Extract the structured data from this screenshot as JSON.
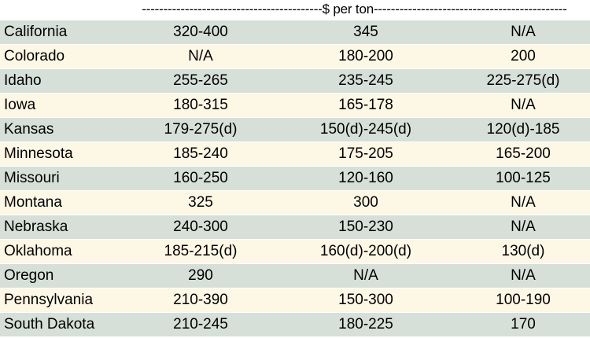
{
  "header": {
    "unit_label": "------------------------------------------$ per ton---------------------------------------------"
  },
  "rows": [
    {
      "state": "California",
      "c1": "320-400",
      "c2": "345",
      "c3": "N/A"
    },
    {
      "state": "Colorado",
      "c1": "N/A",
      "c2": "180-200",
      "c3": "200"
    },
    {
      "state": "Idaho",
      "c1": "255-265",
      "c2": "235-245",
      "c3": "225-275(d)"
    },
    {
      "state": "Iowa",
      "c1": "180-315",
      "c2": "165-178",
      "c3": "N/A"
    },
    {
      "state": "Kansas",
      "c1": "179-275(d)",
      "c2": "150(d)-245(d)",
      "c3": "120(d)-185"
    },
    {
      "state": "Minnesota",
      "c1": "185-240",
      "c2": "175-205",
      "c3": "165-200"
    },
    {
      "state": "Missouri",
      "c1": "160-250",
      "c2": "120-160",
      "c3": "100-125"
    },
    {
      "state": "Montana",
      "c1": "325",
      "c2": "300",
      "c3": "N/A"
    },
    {
      "state": "Nebraska",
      "c1": "240-300",
      "c2": "150-230",
      "c3": "N/A"
    },
    {
      "state": "Oklahoma",
      "c1": "185-215(d)",
      "c2": "160(d)-200(d)",
      "c3": "130(d)"
    },
    {
      "state": "Oregon",
      "c1": "290",
      "c2": "N/A",
      "c3": "N/A"
    },
    {
      "state": "Pennsylvania",
      "c1": "210-390",
      "c2": "150-300",
      "c3": "100-190"
    },
    {
      "state": "South Dakota",
      "c1": "210-245",
      "c2": "180-225",
      "c3": "170"
    }
  ],
  "colors": {
    "row_shade_a": "#d6e0d8",
    "row_shade_b": "#fdf7e6"
  }
}
